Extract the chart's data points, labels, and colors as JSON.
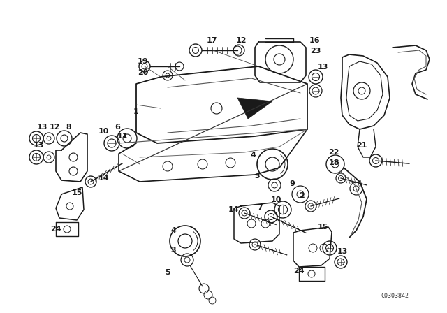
{
  "bg_color": "#ffffff",
  "line_color": "#1a1a1a",
  "figsize": [
    6.4,
    4.48
  ],
  "dpi": 100,
  "diagram_label": "C0303842"
}
